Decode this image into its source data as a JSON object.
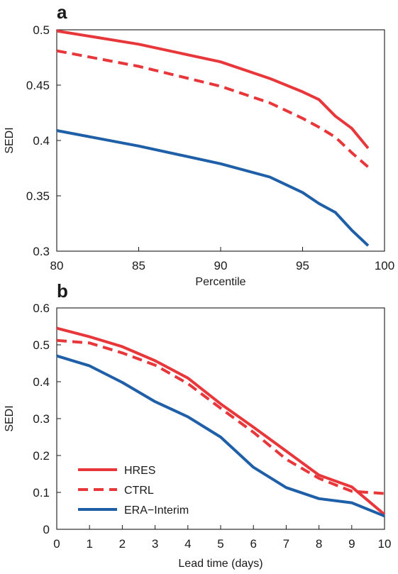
{
  "chart_data": [
    {
      "type": "line",
      "panel": "a",
      "xlabel": "Percentile",
      "ylabel": "SEDI",
      "xlim": [
        80,
        100
      ],
      "ylim": [
        0.3,
        0.5
      ],
      "xticks": [
        80,
        85,
        90,
        95,
        100
      ],
      "yticks": [
        0.3,
        0.35,
        0.4,
        0.45,
        0.5
      ],
      "xtick_labels": [
        "80",
        "85",
        "90",
        "95",
        "100"
      ],
      "ytick_labels": [
        "0.3",
        "0.35",
        "0.4",
        "0.45",
        "0.5"
      ],
      "grid": false,
      "series": [
        {
          "name": "HRES",
          "color": "#e8373a",
          "dash": "solid",
          "x": [
            80,
            85,
            90,
            93,
            95,
            96,
            97,
            98,
            99
          ],
          "y": [
            0.499,
            0.487,
            0.471,
            0.456,
            0.444,
            0.437,
            0.422,
            0.411,
            0.393
          ]
        },
        {
          "name": "CTRL",
          "color": "#e8373a",
          "dash": "dashed",
          "x": [
            80,
            85,
            90,
            93,
            95,
            96,
            97,
            98,
            99
          ],
          "y": [
            0.481,
            0.467,
            0.449,
            0.434,
            0.42,
            0.412,
            0.403,
            0.389,
            0.376
          ]
        },
        {
          "name": "ERA−Interim",
          "color": "#1f5fa8",
          "dash": "solid",
          "x": [
            80,
            85,
            90,
            93,
            95,
            96,
            97,
            98,
            99
          ],
          "y": [
            0.409,
            0.395,
            0.379,
            0.367,
            0.353,
            0.343,
            0.335,
            0.319,
            0.305
          ]
        }
      ]
    },
    {
      "type": "line",
      "panel": "b",
      "xlabel": "Lead time (days)",
      "ylabel": "SEDI",
      "xlim": [
        0,
        10
      ],
      "ylim": [
        0,
        0.6
      ],
      "xticks": [
        0,
        1,
        2,
        3,
        4,
        5,
        6,
        7,
        8,
        9,
        10
      ],
      "yticks": [
        0,
        0.1,
        0.2,
        0.3,
        0.4,
        0.5,
        0.6
      ],
      "xtick_labels": [
        "0",
        "1",
        "2",
        "3",
        "4",
        "5",
        "6",
        "7",
        "8",
        "9",
        "10"
      ],
      "ytick_labels": [
        "0",
        "0.1",
        "0.2",
        "0.3",
        "0.4",
        "0.5",
        "0.6"
      ],
      "grid": false,
      "legend": {
        "placement": "bottom-left"
      },
      "series": [
        {
          "name": "HRES",
          "color": "#e8373a",
          "dash": "solid",
          "x": [
            0,
            1,
            2,
            3,
            4,
            5,
            6,
            7,
            8,
            9,
            10
          ],
          "y": [
            0.545,
            0.522,
            0.495,
            0.457,
            0.41,
            0.34,
            0.277,
            0.212,
            0.147,
            0.115,
            0.04
          ]
        },
        {
          "name": "CTRL",
          "color": "#e8373a",
          "dash": "dashed",
          "x": [
            0,
            1,
            2,
            3,
            4,
            5,
            6,
            7,
            8,
            9,
            10
          ],
          "y": [
            0.512,
            0.505,
            0.478,
            0.445,
            0.395,
            0.328,
            0.263,
            0.19,
            0.138,
            0.103,
            0.097
          ]
        },
        {
          "name": "ERA−Interim",
          "color": "#1f5fa8",
          "dash": "solid",
          "x": [
            0,
            1,
            2,
            3,
            4,
            5,
            6,
            7,
            8,
            9,
            10
          ],
          "y": [
            0.47,
            0.443,
            0.398,
            0.346,
            0.305,
            0.25,
            0.168,
            0.113,
            0.083,
            0.072,
            0.036
          ]
        }
      ]
    }
  ]
}
